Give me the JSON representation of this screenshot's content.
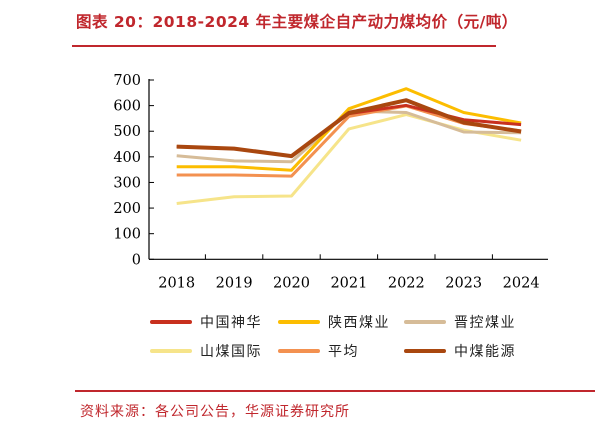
{
  "title": "图表 20：2018-2024 年主要煤企自产动力煤均价（元/吨）",
  "source": "资料来源：各公司公告，华源证券研究所",
  "chart_data": {
    "type": "line",
    "x": [
      "2018",
      "2019",
      "2020",
      "2021",
      "2022",
      "2023",
      "2024"
    ],
    "yticks": [
      "0",
      "100",
      "200",
      "300",
      "400",
      "500",
      "600",
      "700"
    ],
    "ylim": [
      0,
      700
    ],
    "grid": false,
    "legend_placement": "bottom",
    "series": [
      {
        "name": "中国神华",
        "color": "#c8301e",
        "values": [
          440,
          432,
          403,
          569,
          601,
          545,
          526
        ]
      },
      {
        "name": "陕西煤业",
        "color": "#fcbd00",
        "values": [
          361,
          361,
          348,
          588,
          666,
          573,
          532
        ]
      },
      {
        "name": "晋控煤业",
        "color": "#d6bc98",
        "values": [
          404,
          384,
          381,
          579,
          573,
          497,
          494
        ]
      },
      {
        "name": "山煤国际",
        "color": "#f6e48a",
        "values": [
          218,
          244,
          247,
          509,
          565,
          504,
          465
        ]
      },
      {
        "name": "平均",
        "color": "#f39150",
        "values": [
          329,
          329,
          325,
          558,
          599,
          530,
          501
        ]
      },
      {
        "name": "中煤能源",
        "color": "#a9470f",
        "values": [
          440,
          432,
          403,
          571,
          621,
          534,
          499
        ]
      }
    ]
  }
}
